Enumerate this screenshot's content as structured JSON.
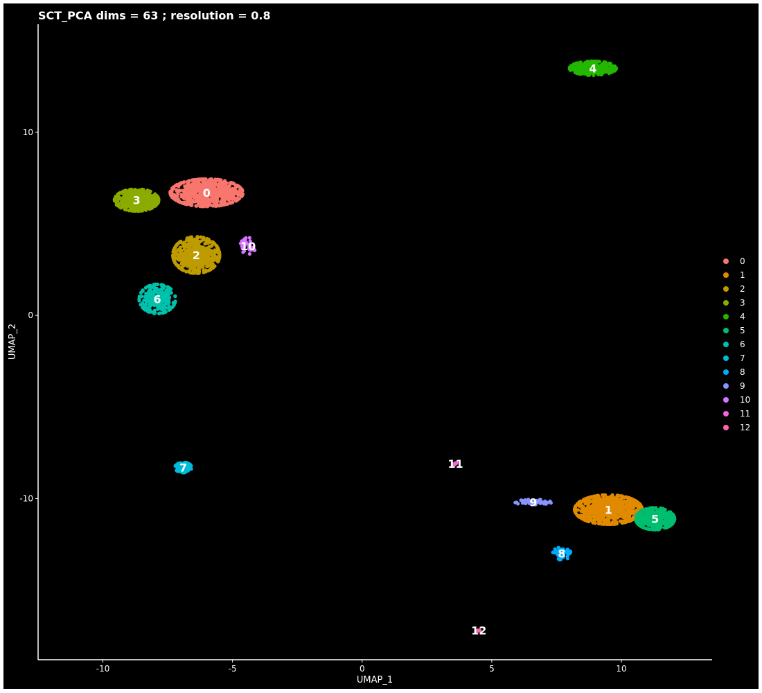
{
  "chart_data": {
    "type": "scatter",
    "title": "SCT_PCA dims =  63 ; resolution = 0.8",
    "xlabel": "UMAP_1",
    "ylabel": "UMAP_2",
    "xlim": [
      -12.5,
      13.5
    ],
    "ylim": [
      -18.8,
      15.9
    ],
    "xticks": [
      -10,
      -5,
      0,
      5,
      10
    ],
    "yticks": [
      10,
      0,
      -10
    ],
    "xtick_labels": [
      "-10",
      "-5",
      "0",
      "5",
      "10"
    ],
    "ytick_labels": [
      "10",
      "0",
      "-10"
    ],
    "background": "#000000",
    "grid": false,
    "legend_position": "right",
    "legend": [
      "0",
      "1",
      "2",
      "3",
      "4",
      "5",
      "6",
      "7",
      "8",
      "9",
      "10",
      "11",
      "12"
    ],
    "clusters": [
      {
        "id": "0",
        "label": "0",
        "color": "#F8766D",
        "center": [
          -6.0,
          6.7
        ],
        "spread": [
          1.4,
          0.75
        ]
      },
      {
        "id": "1",
        "label": "1",
        "color": "#E18A00",
        "center": [
          9.5,
          -10.6
        ],
        "spread": [
          1.3,
          0.8
        ]
      },
      {
        "id": "2",
        "label": "2",
        "color": "#BE9C00",
        "center": [
          -6.4,
          3.3
        ],
        "spread": [
          0.9,
          1.0
        ]
      },
      {
        "id": "3",
        "label": "3",
        "color": "#8CAB00",
        "center": [
          -8.7,
          6.3
        ],
        "spread": [
          0.85,
          0.6
        ]
      },
      {
        "id": "4",
        "label": "4",
        "color": "#24B700",
        "center": [
          8.9,
          13.5
        ],
        "spread": [
          0.9,
          0.38
        ]
      },
      {
        "id": "5",
        "label": "5",
        "color": "#00BE70",
        "center": [
          11.3,
          -11.1
        ],
        "spread": [
          0.75,
          0.6
        ]
      },
      {
        "id": "6",
        "label": "6",
        "color": "#00C1AB",
        "center": [
          -7.9,
          0.9
        ],
        "spread": [
          0.7,
          0.8
        ]
      },
      {
        "id": "7",
        "label": "7",
        "color": "#00BBDA",
        "center": [
          -6.9,
          -8.3
        ],
        "spread": [
          0.32,
          0.28
        ]
      },
      {
        "id": "8",
        "label": "8",
        "color": "#00ACFC",
        "center": [
          7.7,
          -13.0
        ],
        "spread": [
          0.35,
          0.35
        ]
      },
      {
        "id": "9",
        "label": "9",
        "color": "#8B93FF",
        "center": [
          6.6,
          -10.2
        ],
        "spread": [
          0.7,
          0.15
        ]
      },
      {
        "id": "10",
        "label": "10",
        "color": "#D575FE",
        "center": [
          -4.4,
          3.8
        ],
        "spread": [
          0.3,
          0.45
        ]
      },
      {
        "id": "11",
        "label": "11",
        "color": "#F962DD",
        "center": [
          3.6,
          -8.1
        ],
        "spread": [
          0.07,
          0.07
        ]
      },
      {
        "id": "12",
        "label": "12",
        "color": "#FF65AC",
        "center": [
          4.5,
          -17.2
        ],
        "spread": [
          0.07,
          0.07
        ]
      }
    ]
  }
}
